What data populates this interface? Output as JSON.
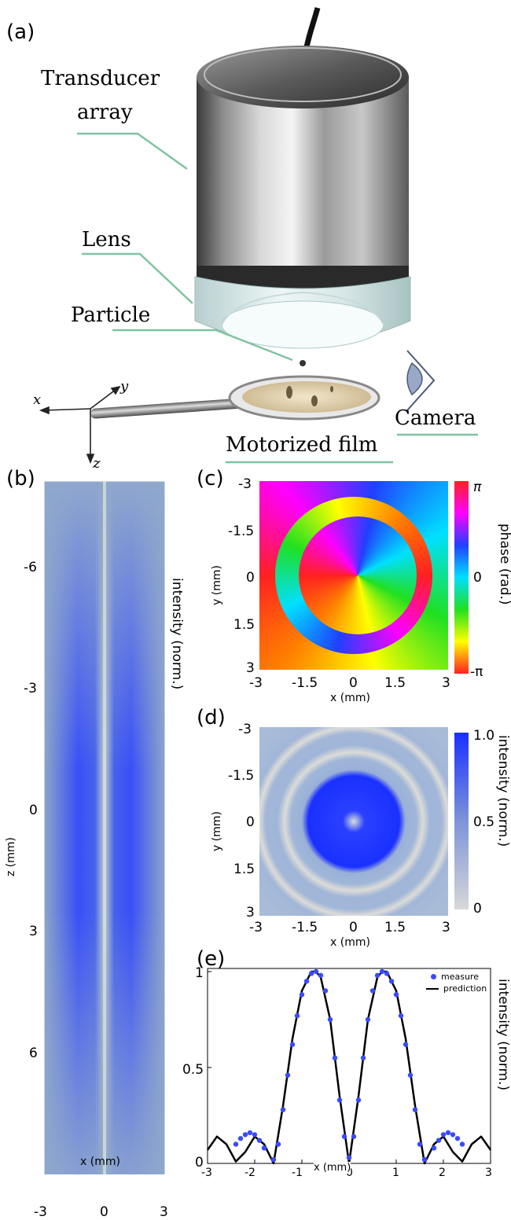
{
  "panel_a": {
    "letter": "(a)",
    "labels": {
      "transducer_line1": "Transducer",
      "transducer_line2": "array",
      "lens": "Lens",
      "particle": "Particle",
      "camera": "Camera",
      "motorized_film": "Motorized film"
    },
    "axes": {
      "x": "x",
      "y": "y",
      "z": "z"
    }
  },
  "panel_b": {
    "letter": "(b)",
    "xlabel": "x (mm)",
    "ylabel": "z (mm)",
    "right_label": "intensity (norm.)",
    "xticks": [
      "-3",
      "0",
      "3"
    ],
    "zticks": [
      "-6",
      "-3",
      "0",
      "3",
      "6"
    ]
  },
  "panel_c": {
    "letter": "(c)",
    "xlabel": "x (mm)",
    "ylabel": "y (mm)",
    "colorbar_label": "phase (rad.)",
    "xticks": [
      "-3",
      "-1.5",
      "0",
      "1.5",
      "3"
    ],
    "yticks": [
      "-3",
      "-1.5",
      "0",
      "1.5",
      "3"
    ],
    "cbar_ticks": [
      "π",
      "0",
      "-π"
    ]
  },
  "panel_d": {
    "letter": "(d)",
    "xlabel": "x (mm)",
    "ylabel": "y (mm)",
    "colorbar_label": "intensity (norm.)",
    "xticks": [
      "-3",
      "-1.5",
      "0",
      "1.5",
      "3"
    ],
    "yticks": [
      "-3",
      "-1.5",
      "0",
      "1.5",
      "3"
    ],
    "cbar_ticks": [
      "1.0",
      "0.5",
      "0"
    ]
  },
  "panel_e": {
    "letter": "(e)",
    "xlabel": "x (mm)",
    "right_label": "intensity (norm.)",
    "xticks": [
      "-3",
      "-2",
      "-1",
      "0",
      "1",
      "2",
      "3"
    ],
    "yticks": [
      "1",
      "0.5",
      "0"
    ],
    "legend_measure": "measure",
    "legend_prediction": "prediction"
  },
  "colors": {
    "accent_line": "#7fc3a0",
    "intensity_blue": "#1a2fff",
    "marker": "#3a4bff"
  },
  "chart_data": {
    "type": "line",
    "xlim": [
      -3,
      3
    ],
    "ylim": [
      0,
      1
    ],
    "series": [
      {
        "name": "measure",
        "style": "scatter",
        "x": [
          -2.4,
          -2.3,
          -2.2,
          -2.1,
          -2.0,
          -1.9,
          -1.8,
          -1.6,
          -1.5,
          -1.4,
          -1.3,
          -1.2,
          -1.1,
          -1.0,
          -0.9,
          -0.8,
          -0.7,
          -0.6,
          -0.5,
          -0.4,
          -0.3,
          -0.2,
          -0.1,
          0.0,
          0.1,
          0.2,
          0.3,
          0.4,
          0.5,
          0.6,
          0.7,
          0.8,
          0.9,
          1.0,
          1.1,
          1.2,
          1.3,
          1.4,
          1.5,
          1.6,
          1.8,
          1.9,
          2.0,
          2.1,
          2.2,
          2.3,
          2.4
        ],
        "y": [
          0.1,
          0.13,
          0.15,
          0.16,
          0.15,
          0.12,
          0.08,
          0.02,
          0.1,
          0.28,
          0.46,
          0.62,
          0.77,
          0.88,
          0.95,
          0.99,
          1.0,
          0.98,
          0.9,
          0.75,
          0.55,
          0.33,
          0.14,
          0.03,
          0.14,
          0.33,
          0.55,
          0.75,
          0.9,
          0.98,
          1.0,
          0.99,
          0.95,
          0.88,
          0.77,
          0.62,
          0.46,
          0.28,
          0.1,
          0.02,
          0.08,
          0.12,
          0.15,
          0.16,
          0.15,
          0.13,
          0.1
        ]
      },
      {
        "name": "prediction",
        "style": "line",
        "x": [
          -3.0,
          -2.8,
          -2.6,
          -2.4,
          -2.2,
          -2.0,
          -1.8,
          -1.6,
          -1.4,
          -1.2,
          -1.0,
          -0.8,
          -0.7,
          -0.6,
          -0.4,
          -0.2,
          0.0,
          0.2,
          0.4,
          0.6,
          0.7,
          0.8,
          1.0,
          1.2,
          1.4,
          1.6,
          1.8,
          2.0,
          2.2,
          2.4,
          2.6,
          2.8,
          3.0
        ],
        "y": [
          0.07,
          0.14,
          0.1,
          0.01,
          0.06,
          0.14,
          0.1,
          0.0,
          0.3,
          0.65,
          0.9,
          1.0,
          1.0,
          0.97,
          0.75,
          0.35,
          0.0,
          0.35,
          0.75,
          0.97,
          1.0,
          1.0,
          0.9,
          0.65,
          0.3,
          0.0,
          0.1,
          0.14,
          0.06,
          0.01,
          0.1,
          0.14,
          0.07
        ]
      }
    ]
  }
}
